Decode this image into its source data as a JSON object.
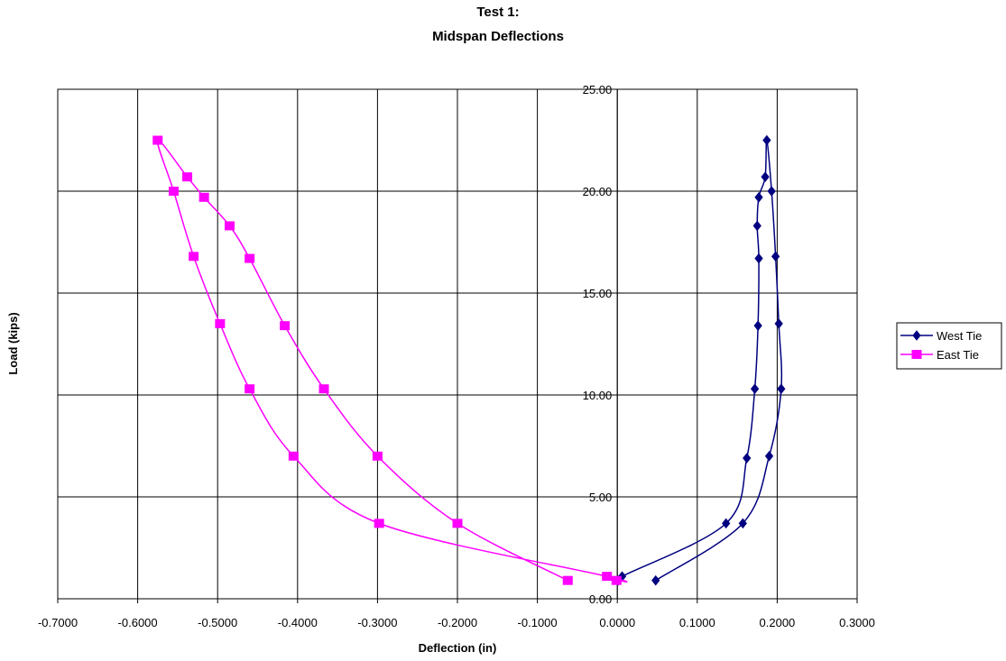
{
  "chart_data": {
    "type": "scatter",
    "title": "Test 1:",
    "subtitle": "Midspan Deflections",
    "xlabel": "Deflection (in)",
    "ylabel": "Load (kips)",
    "xlim": [
      -0.7,
      0.3
    ],
    "ylim": [
      0,
      25
    ],
    "x_ticks": [
      "-0.7000",
      "-0.6000",
      "-0.5000",
      "-0.4000",
      "-0.3000",
      "-0.2000",
      "-0.1000",
      "0.0000",
      "0.1000",
      "0.2000",
      "0.3000"
    ],
    "y_ticks": [
      "0.00",
      "5.00",
      "10.00",
      "15.00",
      "20.00",
      "25.00"
    ],
    "grid": true,
    "legend_position": "right",
    "series": [
      {
        "name": "West Tie",
        "color": "#000080",
        "marker": "diamond",
        "points": [
          [
            0.048,
            0.9
          ],
          [
            0.157,
            3.7
          ],
          [
            0.19,
            7.0
          ],
          [
            0.205,
            10.3
          ],
          [
            0.202,
            13.5
          ],
          [
            0.198,
            16.8
          ],
          [
            0.193,
            20.0
          ],
          [
            0.187,
            22.5
          ],
          [
            0.185,
            20.7
          ],
          [
            0.177,
            19.7
          ],
          [
            0.175,
            18.3
          ],
          [
            0.177,
            16.7
          ],
          [
            0.176,
            13.4
          ],
          [
            0.172,
            10.3
          ],
          [
            0.162,
            6.9
          ],
          [
            0.136,
            3.7
          ],
          [
            0.006,
            1.1
          ],
          [
            0.001,
            0.9
          ]
        ]
      },
      {
        "name": "East Tie",
        "color": "#FF00FF",
        "marker": "square",
        "points": [
          [
            -0.062,
            0.9
          ],
          [
            -0.2,
            3.7
          ],
          [
            -0.3,
            7.0
          ],
          [
            -0.367,
            10.3
          ],
          [
            -0.416,
            13.4
          ],
          [
            -0.46,
            16.7
          ],
          [
            -0.485,
            18.3
          ],
          [
            -0.517,
            19.7
          ],
          [
            -0.538,
            20.7
          ],
          [
            -0.575,
            22.5
          ],
          [
            -0.555,
            20.0
          ],
          [
            -0.53,
            16.8
          ],
          [
            -0.497,
            13.5
          ],
          [
            -0.46,
            10.3
          ],
          [
            -0.405,
            7.0
          ],
          [
            -0.298,
            3.7
          ],
          [
            -0.013,
            1.1
          ],
          [
            -0.001,
            0.9
          ]
        ]
      }
    ]
  }
}
